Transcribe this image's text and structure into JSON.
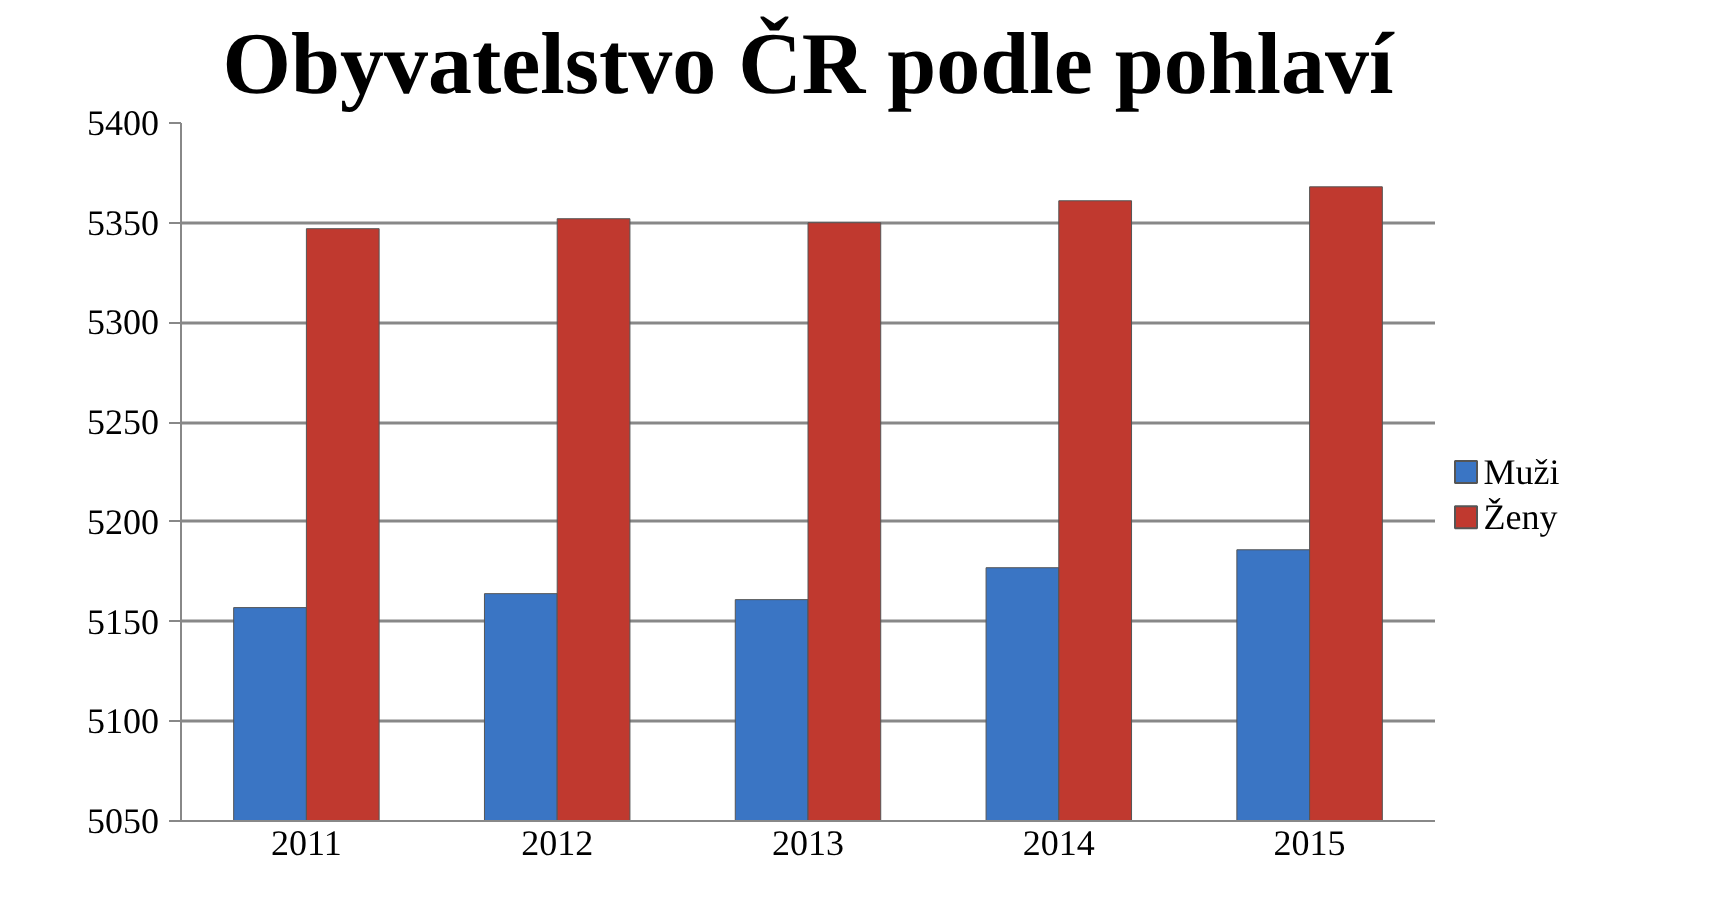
{
  "chart_data": {
    "type": "bar",
    "title": "Obyvatelstvo ČR podle pohlaví",
    "categories": [
      "2011",
      "2012",
      "2013",
      "2014",
      "2015"
    ],
    "series": [
      {
        "name": "Muži",
        "color": "#3a75c4",
        "values": [
          5157,
          5164,
          5161,
          5177,
          5186
        ]
      },
      {
        "name": "Ženy",
        "color": "#c0392f",
        "values": [
          5347,
          5352,
          5350,
          5361,
          5368
        ]
      }
    ],
    "ylim": [
      5050,
      5400
    ],
    "yticks": [
      5050,
      5100,
      5150,
      5200,
      5250,
      5300,
      5350,
      5400
    ],
    "grid": "y",
    "legend": "right"
  }
}
